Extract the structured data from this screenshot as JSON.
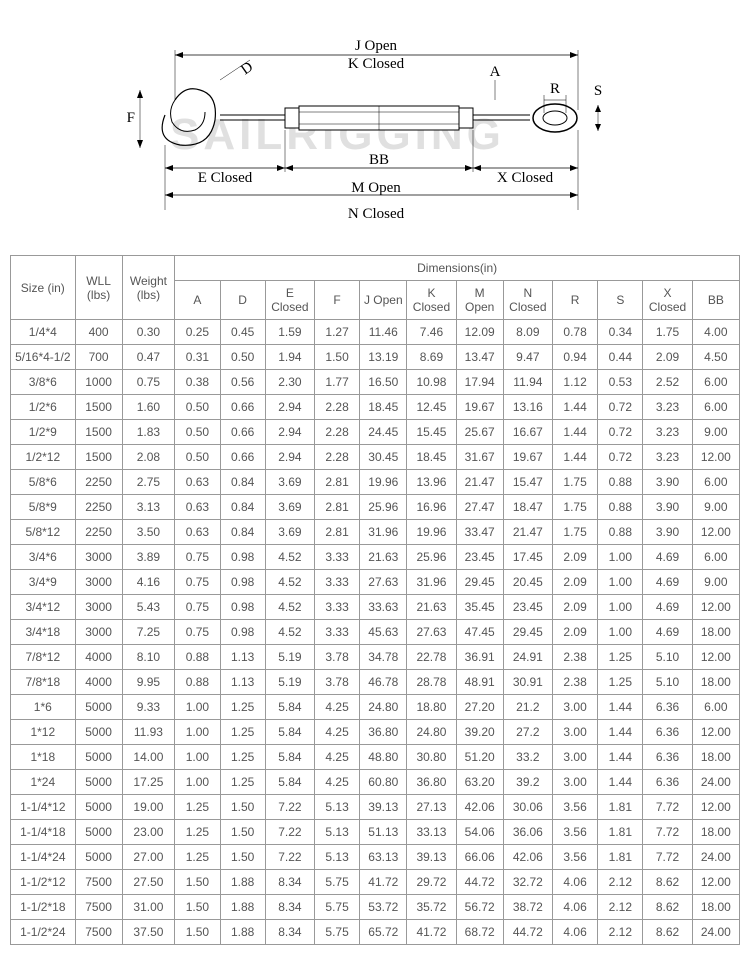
{
  "diagram": {
    "labels": {
      "j_open": "J Open",
      "k_closed": "K Closed",
      "e_closed": "E Closed",
      "bb": "BB",
      "x_closed": "X Closed",
      "m_open": "M Open",
      "n_closed": "N Closed",
      "d": "D",
      "f": "F",
      "a": "A",
      "r": "R",
      "s": "S"
    },
    "colors": {
      "line": "#000000",
      "fill": "#ffffff"
    }
  },
  "table": {
    "header_group": "Dimensions(in)",
    "headers": {
      "size": "Size (in)",
      "wll": "WLL (lbs)",
      "weight": "Weight (lbs)",
      "a": "A",
      "d": "D",
      "e": "E Closed",
      "f": "F",
      "j": "J Open",
      "k": "K Closed",
      "m": "M Open",
      "n": "N Closed",
      "r": "R",
      "s": "S",
      "x": "X Closed",
      "bb": "BB"
    },
    "rows": [
      [
        "1/4*4",
        "400",
        "0.30",
        "0.25",
        "0.45",
        "1.59",
        "1.27",
        "11.46",
        "7.46",
        "12.09",
        "8.09",
        "0.78",
        "0.34",
        "1.75",
        "4.00"
      ],
      [
        "5/16*4-1/2",
        "700",
        "0.47",
        "0.31",
        "0.50",
        "1.94",
        "1.50",
        "13.19",
        "8.69",
        "13.47",
        "9.47",
        "0.94",
        "0.44",
        "2.09",
        "4.50"
      ],
      [
        "3/8*6",
        "1000",
        "0.75",
        "0.38",
        "0.56",
        "2.30",
        "1.77",
        "16.50",
        "10.98",
        "17.94",
        "11.94",
        "1.12",
        "0.53",
        "2.52",
        "6.00"
      ],
      [
        "1/2*6",
        "1500",
        "1.60",
        "0.50",
        "0.66",
        "2.94",
        "2.28",
        "18.45",
        "12.45",
        "19.67",
        "13.16",
        "1.44",
        "0.72",
        "3.23",
        "6.00"
      ],
      [
        "1/2*9",
        "1500",
        "1.83",
        "0.50",
        "0.66",
        "2.94",
        "2.28",
        "24.45",
        "15.45",
        "25.67",
        "16.67",
        "1.44",
        "0.72",
        "3.23",
        "9.00"
      ],
      [
        "1/2*12",
        "1500",
        "2.08",
        "0.50",
        "0.66",
        "2.94",
        "2.28",
        "30.45",
        "18.45",
        "31.67",
        "19.67",
        "1.44",
        "0.72",
        "3.23",
        "12.00"
      ],
      [
        "5/8*6",
        "2250",
        "2.75",
        "0.63",
        "0.84",
        "3.69",
        "2.81",
        "19.96",
        "13.96",
        "21.47",
        "15.47",
        "1.75",
        "0.88",
        "3.90",
        "6.00"
      ],
      [
        "5/8*9",
        "2250",
        "3.13",
        "0.63",
        "0.84",
        "3.69",
        "2.81",
        "25.96",
        "16.96",
        "27.47",
        "18.47",
        "1.75",
        "0.88",
        "3.90",
        "9.00"
      ],
      [
        "5/8*12",
        "2250",
        "3.50",
        "0.63",
        "0.84",
        "3.69",
        "2.81",
        "31.96",
        "19.96",
        "33.47",
        "21.47",
        "1.75",
        "0.88",
        "3.90",
        "12.00"
      ],
      [
        "3/4*6",
        "3000",
        "3.89",
        "0.75",
        "0.98",
        "4.52",
        "3.33",
        "21.63",
        "25.96",
        "23.45",
        "17.45",
        "2.09",
        "1.00",
        "4.69",
        "6.00"
      ],
      [
        "3/4*9",
        "3000",
        "4.16",
        "0.75",
        "0.98",
        "4.52",
        "3.33",
        "27.63",
        "31.96",
        "29.45",
        "20.45",
        "2.09",
        "1.00",
        "4.69",
        "9.00"
      ],
      [
        "3/4*12",
        "3000",
        "5.43",
        "0.75",
        "0.98",
        "4.52",
        "3.33",
        "33.63",
        "21.63",
        "35.45",
        "23.45",
        "2.09",
        "1.00",
        "4.69",
        "12.00"
      ],
      [
        "3/4*18",
        "3000",
        "7.25",
        "0.75",
        "0.98",
        "4.52",
        "3.33",
        "45.63",
        "27.63",
        "47.45",
        "29.45",
        "2.09",
        "1.00",
        "4.69",
        "18.00"
      ],
      [
        "7/8*12",
        "4000",
        "8.10",
        "0.88",
        "1.13",
        "5.19",
        "3.78",
        "34.78",
        "22.78",
        "36.91",
        "24.91",
        "2.38",
        "1.25",
        "5.10",
        "12.00"
      ],
      [
        "7/8*18",
        "4000",
        "9.95",
        "0.88",
        "1.13",
        "5.19",
        "3.78",
        "46.78",
        "28.78",
        "48.91",
        "30.91",
        "2.38",
        "1.25",
        "5.10",
        "18.00"
      ],
      [
        "1*6",
        "5000",
        "9.33",
        "1.00",
        "1.25",
        "5.84",
        "4.25",
        "24.80",
        "18.80",
        "27.20",
        "21.2",
        "3.00",
        "1.44",
        "6.36",
        "6.00"
      ],
      [
        "1*12",
        "5000",
        "11.93",
        "1.00",
        "1.25",
        "5.84",
        "4.25",
        "36.80",
        "24.80",
        "39.20",
        "27.2",
        "3.00",
        "1.44",
        "6.36",
        "12.00"
      ],
      [
        "1*18",
        "5000",
        "14.00",
        "1.00",
        "1.25",
        "5.84",
        "4.25",
        "48.80",
        "30.80",
        "51.20",
        "33.2",
        "3.00",
        "1.44",
        "6.36",
        "18.00"
      ],
      [
        "1*24",
        "5000",
        "17.25",
        "1.00",
        "1.25",
        "5.84",
        "4.25",
        "60.80",
        "36.80",
        "63.20",
        "39.2",
        "3.00",
        "1.44",
        "6.36",
        "24.00"
      ],
      [
        "1-1/4*12",
        "5000",
        "19.00",
        "1.25",
        "1.50",
        "7.22",
        "5.13",
        "39.13",
        "27.13",
        "42.06",
        "30.06",
        "3.56",
        "1.81",
        "7.72",
        "12.00"
      ],
      [
        "1-1/4*18",
        "5000",
        "23.00",
        "1.25",
        "1.50",
        "7.22",
        "5.13",
        "51.13",
        "33.13",
        "54.06",
        "36.06",
        "3.56",
        "1.81",
        "7.72",
        "18.00"
      ],
      [
        "1-1/4*24",
        "5000",
        "27.00",
        "1.25",
        "1.50",
        "7.22",
        "5.13",
        "63.13",
        "39.13",
        "66.06",
        "42.06",
        "3.56",
        "1.81",
        "7.72",
        "24.00"
      ],
      [
        "1-1/2*12",
        "7500",
        "27.50",
        "1.50",
        "1.88",
        "8.34",
        "5.75",
        "41.72",
        "29.72",
        "44.72",
        "32.72",
        "4.06",
        "2.12",
        "8.62",
        "12.00"
      ],
      [
        "1-1/2*18",
        "7500",
        "31.00",
        "1.50",
        "1.88",
        "8.34",
        "5.75",
        "53.72",
        "35.72",
        "56.72",
        "38.72",
        "4.06",
        "2.12",
        "8.62",
        "18.00"
      ],
      [
        "1-1/2*24",
        "7500",
        "37.50",
        "1.50",
        "1.88",
        "8.34",
        "5.75",
        "65.72",
        "41.72",
        "68.72",
        "44.72",
        "4.06",
        "2.12",
        "8.62",
        "24.00"
      ]
    ],
    "colors": {
      "border": "#999999",
      "text": "#555555",
      "background": "#ffffff"
    }
  }
}
